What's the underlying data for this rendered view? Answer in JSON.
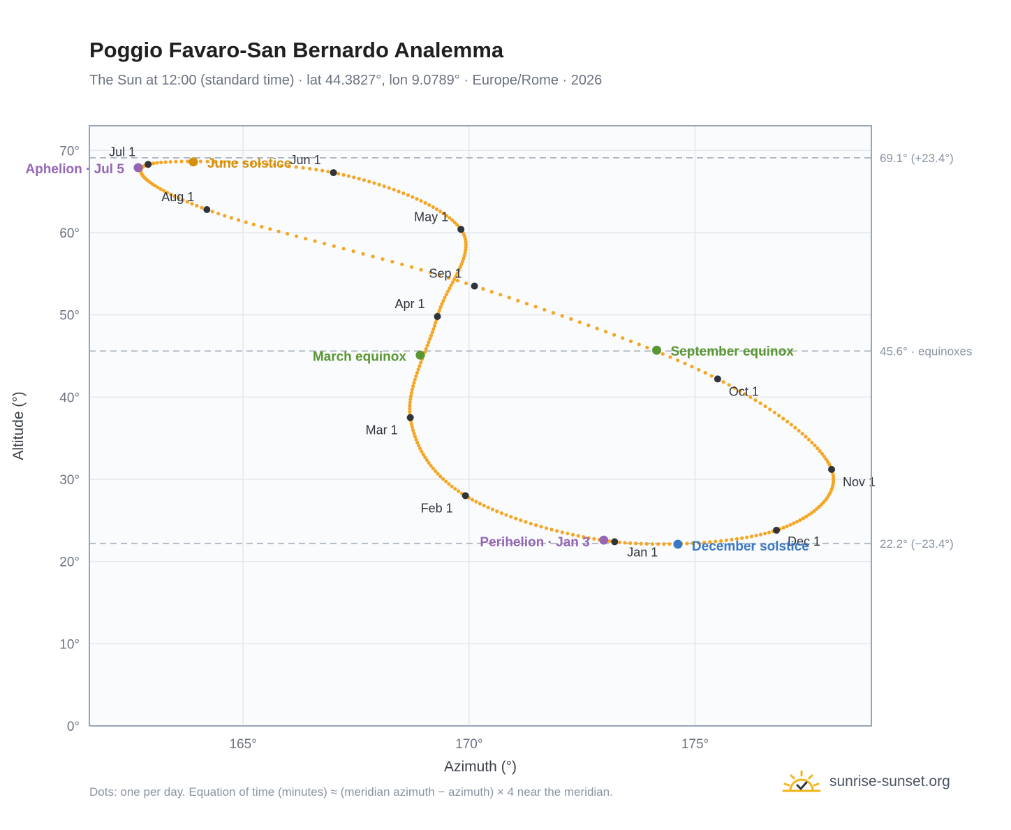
{
  "header": {
    "title": "Poggio Favaro-San Bernardo Analemma",
    "subtitle": "The Sun at 12:00 (standard time) · lat 44.3827°, lon 9.0789° · Europe/Rome · 2026"
  },
  "footer": {
    "note": "Dots: one per day. Equation of time (minutes) ≈ (meridian azimuth − azimuth) × 4 near the meridian.",
    "brand": "sunrise-sunset.org"
  },
  "colors": {
    "curve": "#f5a623",
    "month_marker": "#2f343b",
    "solstice_june": "#d4900f",
    "solstice_december": "#3b78c4",
    "equinox": "#5a9632",
    "apsis": "#9466b5",
    "reference_line": "#aab4bf",
    "plot_bg": "#f9fbfd",
    "grid": "#e4e8ed",
    "axis_border": "#9aa5b4"
  },
  "chart_data": {
    "type": "scatter",
    "xlabel": "Azimuth (°)",
    "ylabel": "Altitude (°)",
    "xlim": [
      161.6,
      178.9
    ],
    "ylim": [
      0,
      73
    ],
    "xticks": [
      165,
      170,
      175
    ],
    "xtick_labels": [
      "165°",
      "170°",
      "175°"
    ],
    "yticks": [
      0,
      10,
      20,
      30,
      40,
      50,
      60,
      70
    ],
    "ytick_labels": [
      "0°",
      "10°",
      "20°",
      "30°",
      "40°",
      "50°",
      "60°",
      "70°"
    ],
    "grid": true,
    "points_per_day": true,
    "series": [
      {
        "values_note": "",
        "path_anchors_x": [
          173.22,
          169.92,
          168.7,
          169.3,
          169.82,
          167.0,
          162.9,
          164.2,
          170.12,
          175.5,
          178.02,
          176.8,
          173.22
        ],
        "path_anchors_y": [
          22.4,
          28.0,
          37.5,
          49.8,
          60.4,
          67.3,
          68.3,
          62.8,
          53.5,
          42.2,
          31.2,
          23.8,
          22.4
        ]
      }
    ],
    "month_points": [
      {
        "label": "Jan 1",
        "x": 173.22,
        "y": 22.4
      },
      {
        "label": "Feb 1",
        "x": 169.92,
        "y": 28.0
      },
      {
        "label": "Mar 1",
        "x": 168.7,
        "y": 37.5
      },
      {
        "label": "Apr 1",
        "x": 169.3,
        "y": 49.8
      },
      {
        "label": "May 1",
        "x": 169.82,
        "y": 60.4
      },
      {
        "label": "Jun 1",
        "x": 167.0,
        "y": 67.3
      },
      {
        "label": "Jul 1",
        "x": 162.9,
        "y": 68.3
      },
      {
        "label": "Aug 1",
        "x": 164.2,
        "y": 62.8
      },
      {
        "label": "Sep 1",
        "x": 170.12,
        "y": 53.5
      },
      {
        "label": "Oct 1",
        "x": 175.5,
        "y": 42.2
      },
      {
        "label": "Nov 1",
        "x": 178.02,
        "y": 31.2
      },
      {
        "label": "Dec 1",
        "x": 176.8,
        "y": 23.8
      }
    ],
    "events": [
      {
        "label": "June solstice",
        "x": 163.9,
        "y": 68.6,
        "kind": "solstice_june"
      },
      {
        "label": "December solstice",
        "x": 174.62,
        "y": 22.1,
        "kind": "solstice_december"
      },
      {
        "label": "March equinox",
        "x": 168.92,
        "y": 45.1,
        "kind": "equinox"
      },
      {
        "label": "September equinox",
        "x": 174.15,
        "y": 45.7,
        "kind": "equinox"
      },
      {
        "label": "Aphelion · Jul 5",
        "x": 162.68,
        "y": 67.9,
        "kind": "apsis"
      },
      {
        "label": "Perihelion · Jan 3",
        "x": 172.98,
        "y": 22.6,
        "kind": "apsis"
      }
    ],
    "reference_lines": [
      {
        "y": 69.1,
        "label": "69.1° (+23.4°)"
      },
      {
        "y": 45.6,
        "label": "45.6° · equinoxes"
      },
      {
        "y": 22.2,
        "label": "22.2° (−23.4°)"
      }
    ]
  }
}
